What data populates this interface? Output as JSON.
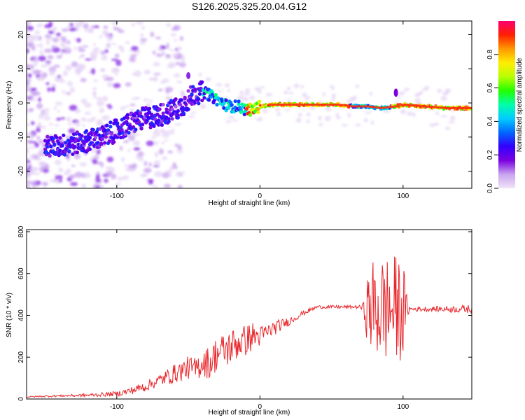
{
  "figure": {
    "title": "S126.2025.325.20.04.G12"
  },
  "chart_data": [
    {
      "type": "heatmap",
      "xlabel": "Height of straight line (km)",
      "ylabel": "Frequency (Hz)",
      "xlim": [
        -163,
        148
      ],
      "ylim": [
        -25,
        24
      ],
      "xticks": [
        -100,
        0,
        100
      ],
      "yticks": [
        -20,
        -10,
        0,
        10,
        20
      ],
      "colorbar": {
        "label": "Normalized spectral amplitude",
        "range": [
          0,
          1
        ],
        "ticks": [
          "0.0",
          "0.2",
          "0.4",
          "0.6",
          "0.8"
        ],
        "colors": [
          "#f0e4f8",
          "#c9a4ef",
          "#7a00e0",
          "#3300ff",
          "#0066ff",
          "#00ccff",
          "#00ffaa",
          "#22ff00",
          "#b8ff00",
          "#ffee00",
          "#ff9900",
          "#ff2000",
          "#ff0070"
        ]
      },
      "ridge": {
        "x": [
          -150,
          -130,
          -110,
          -95,
          -85,
          -75,
          -65,
          -55,
          -45,
          -38,
          -30,
          -22,
          -15,
          -10,
          -5,
          0,
          10,
          30,
          55,
          65,
          75,
          85,
          95,
          100,
          115,
          130,
          148
        ],
        "y": [
          -13,
          -12,
          -10,
          -7,
          -5,
          -4,
          -3,
          -1,
          3,
          3,
          1,
          -1,
          -1,
          -2,
          -2,
          -1,
          -0.5,
          -0.5,
          -0.5,
          -1,
          -1,
          -1.5,
          -1,
          -0.5,
          -1,
          -1.5,
          -1.5
        ]
      }
    },
    {
      "type": "line",
      "xlabel": "Height of straight line (km)",
      "ylabel": "SNR (10 * v/v)",
      "xlim": [
        -163,
        148
      ],
      "ylim": [
        0,
        810
      ],
      "xticks": [
        -100,
        0,
        100
      ],
      "yticks": [
        0,
        200,
        400,
        600,
        800
      ],
      "series": [
        {
          "color": "#e8262b",
          "x": [
            -163,
            -140,
            -120,
            -100,
            -90,
            -80,
            -70,
            -60,
            -50,
            -45,
            -40,
            -35,
            -30,
            -25,
            -20,
            -15,
            -10,
            -5,
            0,
            10,
            20,
            30,
            40,
            50,
            60,
            70,
            72,
            75,
            80,
            85,
            90,
            95,
            100,
            103,
            105,
            110,
            120,
            130,
            140,
            148
          ],
          "y": [
            10,
            15,
            18,
            25,
            40,
            60,
            90,
            120,
            150,
            140,
            180,
            170,
            220,
            230,
            250,
            270,
            280,
            300,
            300,
            340,
            370,
            410,
            440,
            440,
            440,
            440,
            435,
            430,
            430,
            430,
            430,
            430,
            430,
            430,
            430,
            430,
            430,
            430,
            430,
            430
          ],
          "amplitude": [
            3,
            5,
            8,
            12,
            18,
            25,
            30,
            45,
            55,
            60,
            70,
            80,
            85,
            85,
            90,
            80,
            75,
            70,
            50,
            35,
            20,
            12,
            8,
            8,
            8,
            8,
            25,
            160,
            260,
            260,
            260,
            260,
            240,
            40,
            12,
            12,
            12,
            15,
            18,
            20
          ]
        }
      ]
    }
  ]
}
